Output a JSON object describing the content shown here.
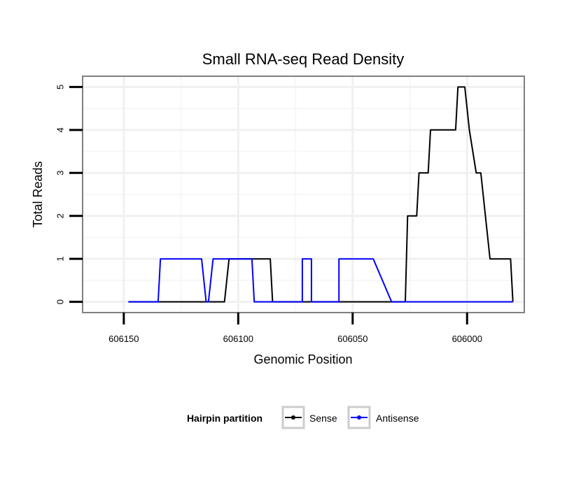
{
  "chart_data": {
    "type": "line",
    "title": "Small RNA-seq Read Density",
    "xlabel": "Genomic Position",
    "ylabel": "Total Reads",
    "x_reversed": true,
    "xlim": [
      606168,
      605975
    ],
    "ylim": [
      -0.25,
      5.25
    ],
    "x_ticks": [
      606150,
      606100,
      606050,
      606000
    ],
    "x_tick_labels": [
      "606150",
      "606100",
      "606050",
      "606000"
    ],
    "y_ticks": [
      0,
      1,
      2,
      3,
      4,
      5
    ],
    "y_tick_labels": [
      "0",
      "1",
      "2",
      "3",
      "4",
      "5"
    ],
    "grid": true,
    "legend": {
      "title": "Hairpin partition",
      "position": "bottom"
    },
    "series": [
      {
        "name": "Sense",
        "color": "#000000",
        "x": [
          606148,
          606108,
          606106,
          606104,
          606086,
          606085,
          606083,
          606081,
          606064,
          606063,
          606047,
          606027,
          606026,
          606022,
          606021,
          606017,
          606016,
          606015,
          606005,
          606004,
          606001,
          605999,
          605996,
          605994,
          605990,
          605981,
          605980
        ],
        "y": [
          0,
          0,
          0,
          1,
          1,
          0,
          0,
          0,
          0,
          0,
          0,
          0,
          2,
          2,
          3,
          3,
          4,
          4,
          4,
          5,
          5,
          4,
          3,
          3,
          1,
          1,
          0
        ]
      },
      {
        "name": "Antisense",
        "color": "#0000ff",
        "x": [
          606148,
          606135,
          606134,
          606116,
          606114,
          606113,
          606111,
          606110,
          606094,
          606093,
          606076,
          606074,
          606072,
          606072,
          606068,
          606068,
          606056,
          606056,
          606041,
          606033,
          606032,
          605980
        ],
        "y": [
          0,
          0,
          1,
          1,
          0,
          0,
          1,
          1,
          1,
          0,
          0,
          0,
          0,
          1,
          1,
          0,
          0,
          1,
          1,
          0,
          0,
          0
        ]
      }
    ]
  }
}
